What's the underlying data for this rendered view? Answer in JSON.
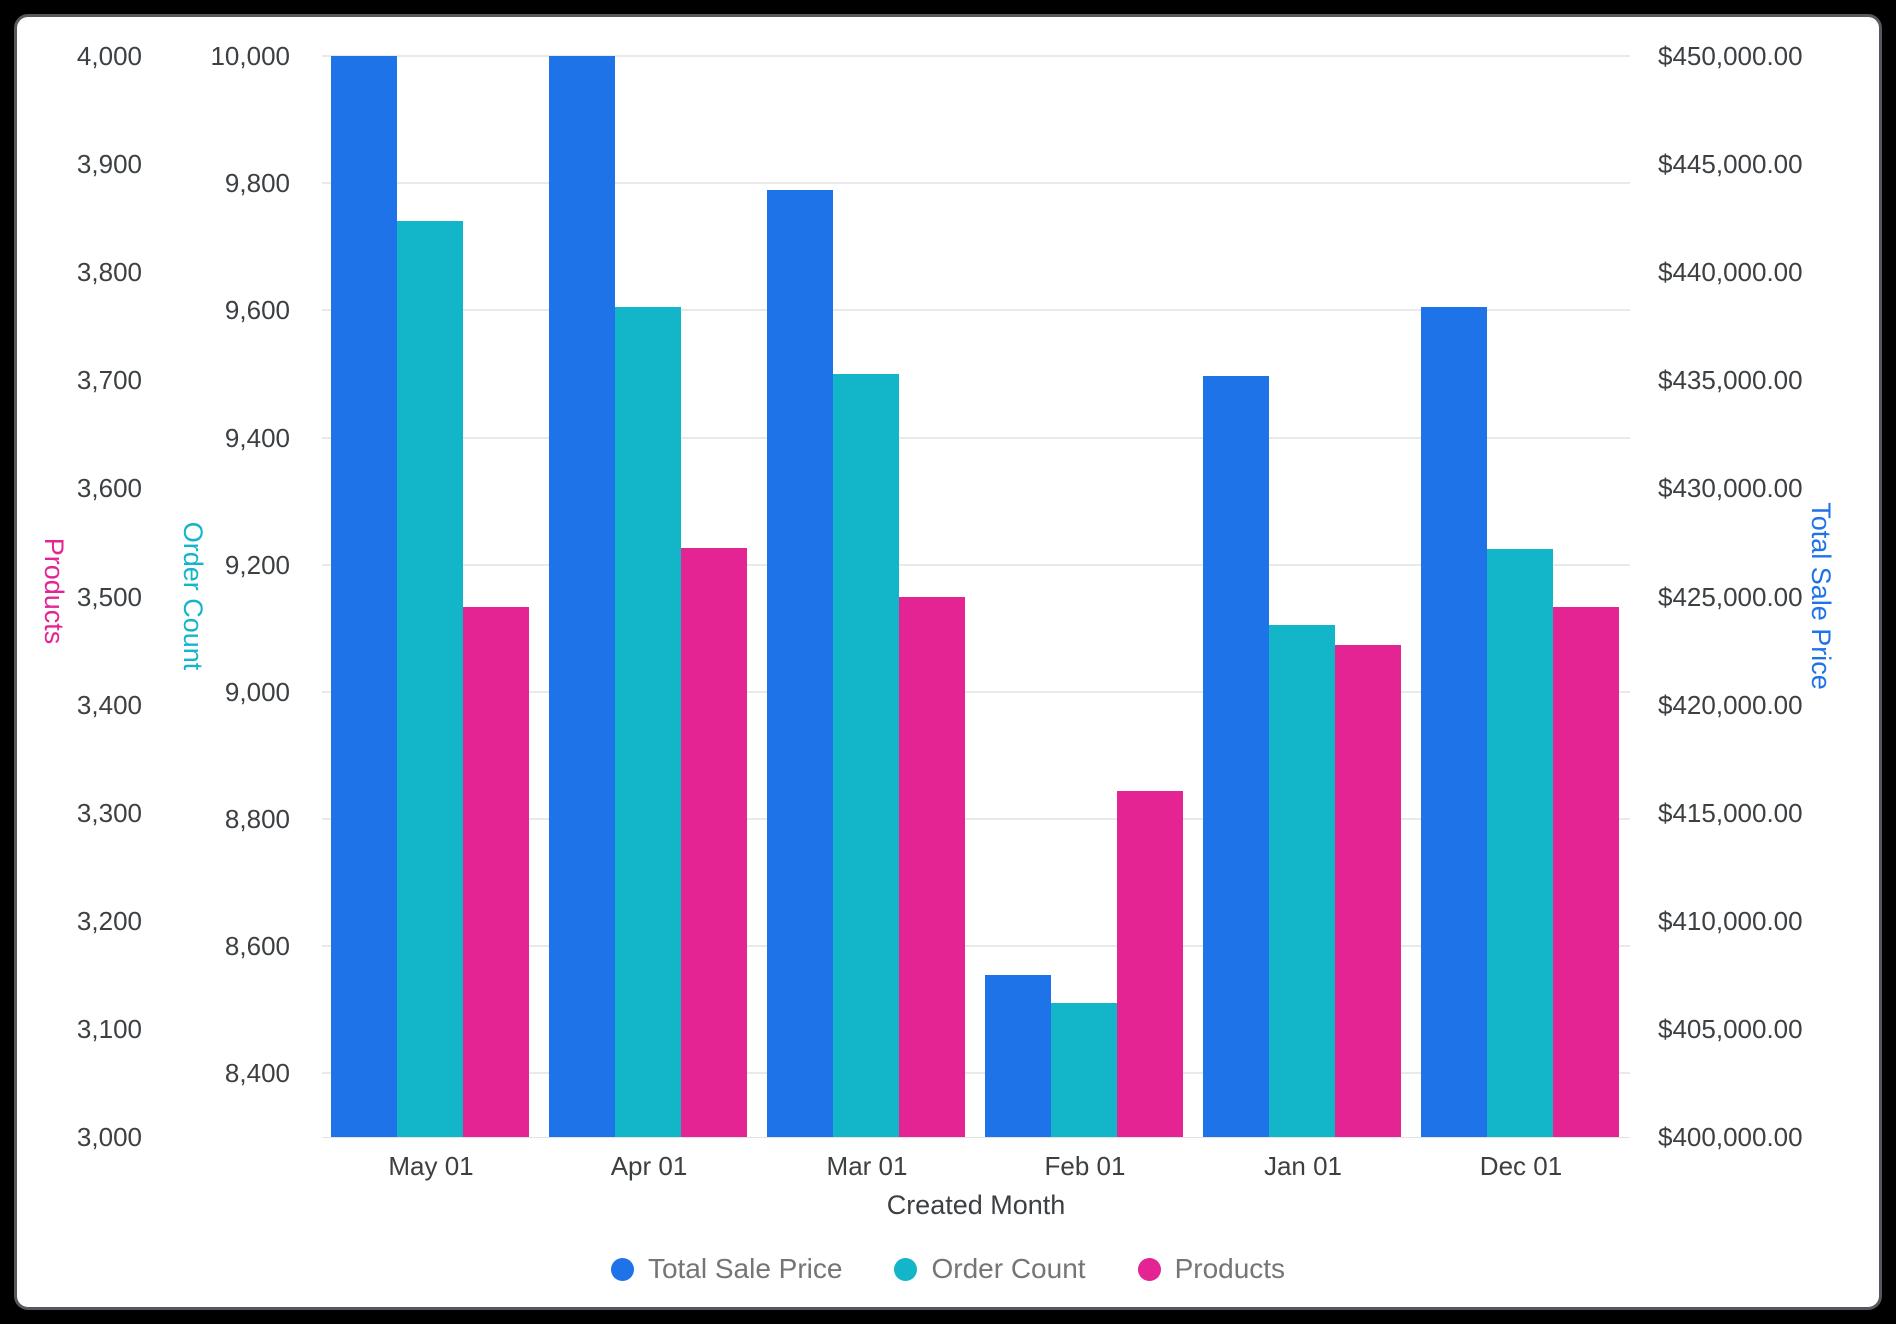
{
  "window": {
    "background": "#000000",
    "card_background": "#ffffff",
    "card_border_color": "#55595d"
  },
  "chart_data": {
    "type": "bar",
    "title": "",
    "xlabel": "Created Month",
    "categories": [
      "May 01",
      "Apr 01",
      "Mar 01",
      "Feb 01",
      "Jan 01",
      "Dec 01"
    ],
    "series": [
      {
        "name": "Total Sale Price",
        "axis": "price",
        "color": "#1e73e8",
        "values": [
          450000,
          450000,
          443800,
          407500,
          435200,
          438400
        ]
      },
      {
        "name": "Order Count",
        "axis": "order",
        "color": "#13b5c9",
        "values": [
          9740,
          9605,
          9500,
          8510,
          9105,
          9225
        ]
      },
      {
        "name": "Products",
        "axis": "products",
        "color": "#e32492",
        "values": [
          3490,
          3545,
          3500,
          3320,
          3455,
          3490
        ]
      }
    ],
    "axes": {
      "products": {
        "title": "Products",
        "color": "#e32492",
        "side": "outer-left",
        "min": 3000,
        "max": 4000,
        "tick_values": [
          4000,
          3900,
          3800,
          3700,
          3600,
          3500,
          3400,
          3300,
          3200,
          3100,
          3000
        ],
        "tick_labels": [
          "4,000",
          "3,900",
          "3,800",
          "3,700",
          "3,600",
          "3,500",
          "3,400",
          "3,300",
          "3,200",
          "3,100",
          "3,000"
        ]
      },
      "order": {
        "title": "Order Count",
        "color": "#13b5c9",
        "side": "inner-left",
        "min": 8300,
        "max": 10000,
        "tick_values": [
          10000,
          9800,
          9600,
          9400,
          9200,
          9000,
          8800,
          8600,
          8400
        ],
        "tick_labels": [
          "10,000",
          "9,800",
          "9,600",
          "9,400",
          "9,200",
          "9,000",
          "8,800",
          "8,600",
          "8,400"
        ]
      },
      "price": {
        "title": "Total Sale Price",
        "color": "#1e73e8",
        "side": "right",
        "min": 400000,
        "max": 450000,
        "tick_values": [
          450000,
          445000,
          440000,
          435000,
          430000,
          425000,
          420000,
          415000,
          410000,
          405000,
          400000
        ],
        "tick_labels": [
          "$450,000.00",
          "$445,000.00",
          "$440,000.00",
          "$435,000.00",
          "$430,000.00",
          "$425,000.00",
          "$420,000.00",
          "$415,000.00",
          "$410,000.00",
          "$405,000.00",
          "$400,000.00"
        ]
      }
    },
    "grid": {
      "on": true,
      "color": "#e9e9e9",
      "follows_axis": "order"
    },
    "legend": {
      "position": "bottom-center",
      "text_color": "#757575",
      "items": [
        "Total Sale Price",
        "Order Count",
        "Products"
      ]
    }
  }
}
